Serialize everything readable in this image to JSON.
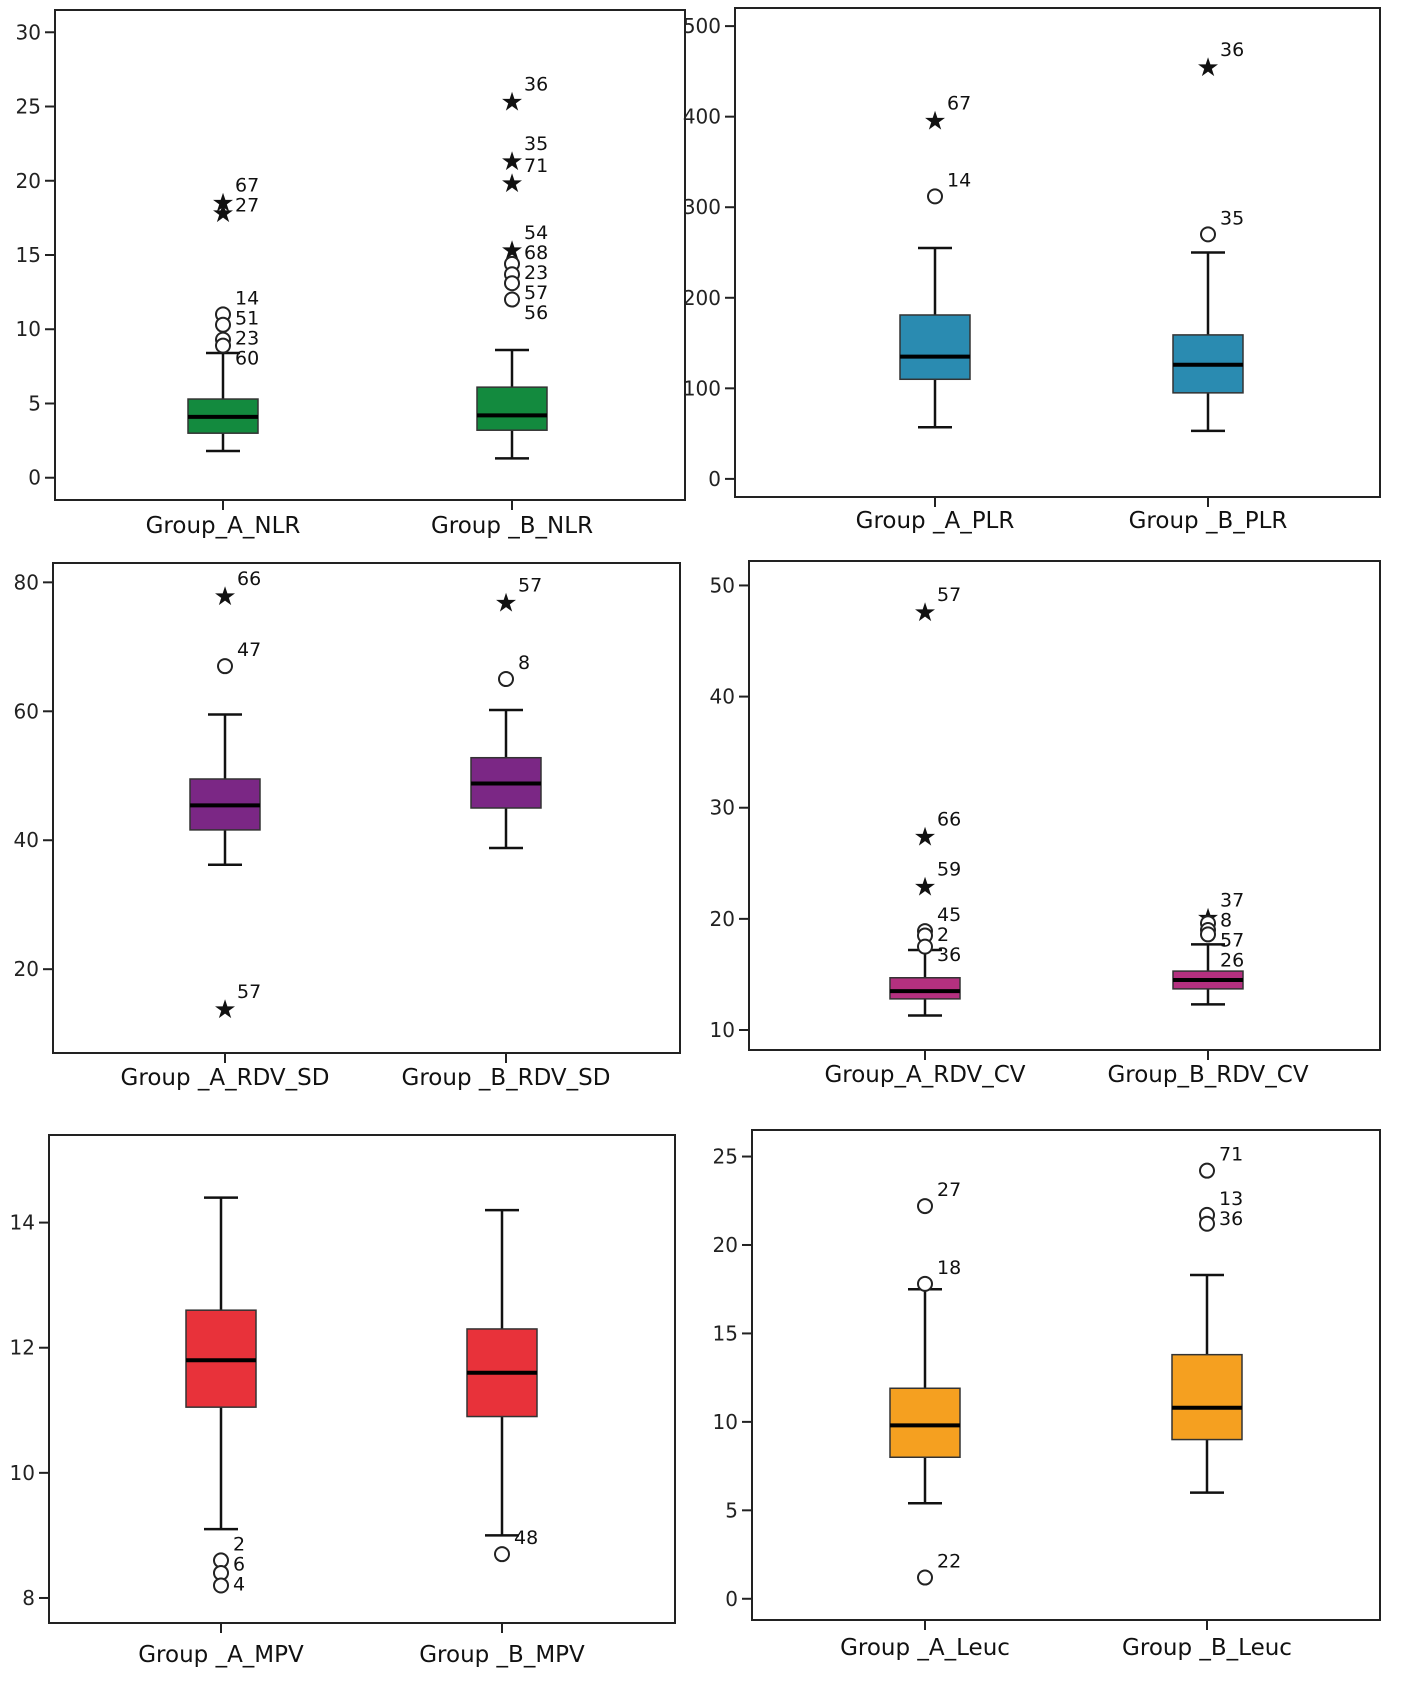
{
  "chart_data": [
    {
      "type": "box",
      "color": "#138a3e",
      "ylim": [
        -1.5,
        31.5
      ],
      "yticks": [
        0,
        5,
        10,
        15,
        20,
        25,
        30
      ],
      "categories": [
        "Group_A_NLR",
        "Group _B_NLR"
      ],
      "boxes": [
        {
          "whisker_low": 1.8,
          "q1": 3.0,
          "median": 4.1,
          "q3": 5.3,
          "whisker_high": 8.4,
          "outliers": [
            {
              "value": 18.6,
              "marker": "star",
              "label": "67"
            },
            {
              "value": 17.9,
              "marker": "star",
              "label": "27"
            },
            {
              "value": 11.0,
              "marker": "circle",
              "label": "14"
            },
            {
              "value": 10.3,
              "marker": "circle",
              "label": "51"
            },
            {
              "value": 9.3,
              "marker": "circle",
              "label": "23"
            },
            {
              "value": 8.9,
              "marker": "circle",
              "label": "60"
            }
          ]
        },
        {
          "whisker_low": 1.3,
          "q1": 3.2,
          "median": 4.2,
          "q3": 6.1,
          "whisker_high": 8.6,
          "outliers": [
            {
              "value": 25.4,
              "marker": "star",
              "label": "36"
            },
            {
              "value": 21.4,
              "marker": "star",
              "label": "35"
            },
            {
              "value": 19.9,
              "marker": "star",
              "label": "71"
            },
            {
              "value": 15.4,
              "marker": "star",
              "label": "54"
            },
            {
              "value": 14.4,
              "marker": "circle",
              "label": "68"
            },
            {
              "value": 13.7,
              "marker": "circle",
              "label": "23"
            },
            {
              "value": 13.1,
              "marker": "circle",
              "label": "57"
            },
            {
              "value": 12.0,
              "marker": "circle",
              "label": "56"
            }
          ]
        }
      ]
    },
    {
      "type": "box",
      "color": "#2a8bb1",
      "ylim": [
        -20,
        520
      ],
      "yticks": [
        0,
        100,
        200,
        300,
        400,
        500
      ],
      "categories": [
        "Group _A_PLR",
        "Group _B_PLR"
      ],
      "boxes": [
        {
          "whisker_low": 57,
          "q1": 110,
          "median": 135,
          "q3": 181,
          "whisker_high": 255,
          "outliers": [
            {
              "value": 397,
              "marker": "star",
              "label": "67"
            },
            {
              "value": 312,
              "marker": "circle",
              "label": "14"
            }
          ]
        },
        {
          "whisker_low": 53,
          "q1": 95,
          "median": 126,
          "q3": 159,
          "whisker_high": 250,
          "outliers": [
            {
              "value": 456,
              "marker": "star",
              "label": "36"
            },
            {
              "value": 270,
              "marker": "circle",
              "label": "35"
            }
          ]
        }
      ]
    },
    {
      "type": "box",
      "color": "#7b2785",
      "ylim": [
        7,
        83
      ],
      "yticks": [
        20,
        40,
        60,
        80
      ],
      "categories": [
        "Group _A_RDV_SD",
        "Group _B_RDV_SD"
      ],
      "boxes": [
        {
          "whisker_low": 36.2,
          "q1": 41.6,
          "median": 45.4,
          "q3": 49.5,
          "whisker_high": 59.5,
          "outliers": [
            {
              "value": 78.0,
              "marker": "star",
              "label": "66"
            },
            {
              "value": 67.0,
              "marker": "circle",
              "label": "47"
            },
            {
              "value": 14.0,
              "marker": "star",
              "label": "57"
            }
          ]
        },
        {
          "whisker_low": 38.8,
          "q1": 45.0,
          "median": 48.8,
          "q3": 52.8,
          "whisker_high": 60.2,
          "outliers": [
            {
              "value": 77.0,
              "marker": "star",
              "label": "57"
            },
            {
              "value": 65.0,
              "marker": "circle",
              "label": "8"
            }
          ]
        }
      ]
    },
    {
      "type": "box",
      "color": "#b4307f",
      "ylim": [
        8.2,
        52.2
      ],
      "yticks": [
        10,
        20,
        30,
        40,
        50
      ],
      "categories": [
        "Group_A_RDV_CV",
        "Group_B_RDV_CV"
      ],
      "boxes": [
        {
          "whisker_low": 11.3,
          "q1": 12.8,
          "median": 13.5,
          "q3": 14.7,
          "whisker_high": 17.2,
          "outliers": [
            {
              "value": 47.7,
              "marker": "star",
              "label": "57"
            },
            {
              "value": 27.5,
              "marker": "star",
              "label": "66"
            },
            {
              "value": 23.0,
              "marker": "star",
              "label": "59"
            },
            {
              "value": 18.9,
              "marker": "circle",
              "label": "45"
            },
            {
              "value": 18.5,
              "marker": "circle",
              "label": "2"
            },
            {
              "value": 17.5,
              "marker": "circle",
              "label": "36"
            }
          ]
        },
        {
          "whisker_low": 12.3,
          "q1": 13.7,
          "median": 14.5,
          "q3": 15.3,
          "whisker_high": 17.7,
          "outliers": [
            {
              "value": 20.2,
              "marker": "star",
              "label": "37"
            },
            {
              "value": 19.6,
              "marker": "circle",
              "label": "8"
            },
            {
              "value": 19.0,
              "marker": "circle",
              "label": "57"
            },
            {
              "value": 18.6,
              "marker": "circle",
              "label": "26"
            }
          ]
        }
      ]
    },
    {
      "type": "box",
      "color": "#e8323a",
      "ylim": [
        7.6,
        15.4
      ],
      "yticks": [
        8,
        10,
        12,
        14
      ],
      "categories": [
        "Group _A_MPV",
        "Group _B_MPV"
      ],
      "boxes": [
        {
          "whisker_low": 9.1,
          "q1": 11.05,
          "median": 11.8,
          "q3": 12.6,
          "whisker_high": 14.4,
          "outliers": [
            {
              "value": 8.6,
              "marker": "circle",
              "label": "2"
            },
            {
              "value": 8.4,
              "marker": "circle",
              "label": "6"
            },
            {
              "value": 8.2,
              "marker": "circle",
              "label": "4"
            }
          ]
        },
        {
          "whisker_low": 9.0,
          "q1": 10.9,
          "median": 11.6,
          "q3": 12.3,
          "whisker_high": 14.2,
          "outliers": [
            {
              "value": 8.7,
              "marker": "circle",
              "label": "48"
            }
          ]
        }
      ]
    },
    {
      "type": "box",
      "color": "#f5a020",
      "ylim": [
        -1.2,
        26.5
      ],
      "yticks": [
        0,
        5,
        10,
        15,
        20,
        25
      ],
      "categories": [
        "Group _A_Leuc",
        "Group _B_Leuc"
      ],
      "boxes": [
        {
          "whisker_low": 5.4,
          "q1": 8.0,
          "median": 9.8,
          "q3": 11.9,
          "whisker_high": 17.5,
          "outliers": [
            {
              "value": 22.2,
              "marker": "circle",
              "label": "27"
            },
            {
              "value": 17.8,
              "marker": "circle",
              "label": "18"
            },
            {
              "value": 1.2,
              "marker": "circle",
              "label": "22"
            }
          ]
        },
        {
          "whisker_low": 6.0,
          "q1": 9.0,
          "median": 10.8,
          "q3": 13.8,
          "whisker_high": 18.3,
          "outliers": [
            {
              "value": 24.2,
              "marker": "circle",
              "label": "71"
            },
            {
              "value": 21.7,
              "marker": "circle",
              "label": "13"
            },
            {
              "value": 21.2,
              "marker": "circle",
              "label": "36"
            }
          ]
        }
      ]
    }
  ]
}
